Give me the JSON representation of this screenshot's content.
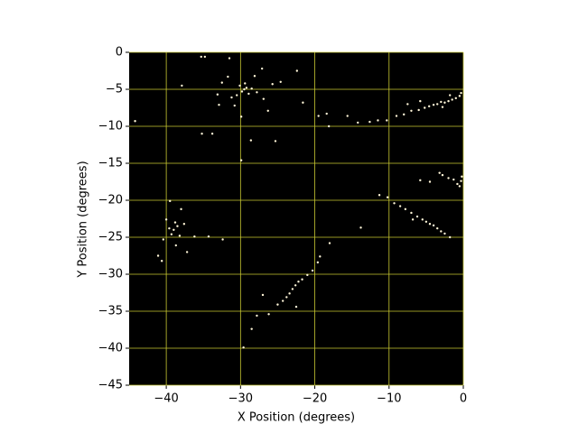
{
  "chart_data": {
    "type": "scatter",
    "x_label": "X Position (degrees)",
    "y_label": "Y Position (degrees)",
    "background": "#000000",
    "grid": true,
    "grid_color": "#c8c832",
    "xlim": [
      -45,
      0
    ],
    "ylim": [
      -45,
      0
    ],
    "xticks": [
      {
        "value": -40,
        "label": "−40"
      },
      {
        "value": -30,
        "label": "−30"
      },
      {
        "value": -20,
        "label": "−20"
      },
      {
        "value": -10,
        "label": "−10"
      },
      0
    ],
    "yticks": [
      0,
      {
        "value": -5,
        "label": "−5"
      },
      {
        "value": -10,
        "label": "−10"
      },
      {
        "value": -15,
        "label": "−15"
      },
      {
        "value": -20,
        "label": "−20"
      },
      {
        "value": -25,
        "label": "−25"
      },
      {
        "value": -30,
        "label": "−30"
      },
      {
        "value": -35,
        "label": "−35"
      },
      {
        "value": -40,
        "label": "−40"
      },
      {
        "value": -45,
        "label": "−45"
      }
    ],
    "color": "#fff6d8",
    "x": [
      -29.5,
      -29.2,
      -29.8,
      -30.1,
      -28.9,
      -29.4,
      -30.5,
      -28.5,
      -31.2,
      -27.8,
      -32.5,
      -26.9,
      -33.1,
      -28.1,
      -30.8,
      -34.8,
      -35.3,
      -27.1,
      -25.7,
      -31.7,
      -29.9,
      -26.3,
      -32.9,
      -24.6,
      -28.6,
      -33.8,
      -29.9,
      -25.3,
      -37.9,
      -31.5,
      -0.5,
      -1.0,
      -1.5,
      -2.0,
      -2.5,
      -3.0,
      -3.5,
      -4.0,
      -4.6,
      -5.2,
      -6.0,
      -7.0,
      -8.0,
      -9.0,
      -10.3,
      -11.5,
      -12.6,
      -14.2,
      -15.6,
      -0.3,
      -1.8,
      -2.8,
      -5.8,
      -7.5,
      -18.1,
      -19.5,
      -0.3,
      -0.8,
      -1.3,
      -0.5,
      -2.0,
      -2.8,
      -3.2,
      -4.5,
      -5.8,
      -0.2,
      -8.5,
      -7.8,
      -7.0,
      -6.2,
      -5.5,
      -5.0,
      -4.5,
      -4.0,
      -3.5,
      -3.0,
      -2.5,
      -1.8,
      -6.8,
      -10.2,
      -9.3,
      -39.0,
      -38.5,
      -39.3,
      -38.8,
      -39.6,
      -38.2,
      -40.0,
      -37.6,
      -40.4,
      -38.7,
      -41.1,
      -36.2,
      -38.0,
      -40.6,
      -37.2,
      -39.5,
      -23.0,
      -22.6,
      -23.4,
      -22.2,
      -23.8,
      -21.7,
      -24.3,
      -25.0,
      -21.0,
      -20.3,
      -19.6,
      -19.3,
      -26.2,
      -27.8,
      -28.5,
      -29.6,
      -27.0,
      -18.0,
      -22.5,
      -44.2,
      -35.2,
      -34.3,
      -32.4,
      -22.4,
      -21.6,
      -18.4,
      -11.3,
      -13.8
    ],
    "y": [
      -5,
      -4.8,
      -5.3,
      -4.5,
      -5.6,
      -4.2,
      -5.8,
      -4.9,
      -6.1,
      -5.4,
      -4.1,
      -6.3,
      -5.7,
      -3.2,
      -7.2,
      -0.6,
      -0.6,
      -2.2,
      -4.3,
      -3.3,
      -8.7,
      -7.9,
      -7.1,
      -4.0,
      -11.9,
      -11.0,
      -14.6,
      -12.0,
      -4.5,
      -0.8,
      -5.9,
      -6.2,
      -6.4,
      -6.6,
      -6.8,
      -6.7,
      -7.0,
      -7.1,
      -7.3,
      -7.5,
      -7.8,
      -7.9,
      -8.4,
      -8.6,
      -9.2,
      -9.2,
      -9.4,
      -9.5,
      -8.6,
      -5.5,
      -5.8,
      -7.4,
      -6.6,
      -7.0,
      -10.0,
      -8.6,
      -17.4,
      -17.8,
      -17.2,
      -18.1,
      -17.0,
      -16.6,
      -16.3,
      -17.5,
      -17.3,
      -16.8,
      -20.8,
      -21.2,
      -21.7,
      -22.2,
      -22.6,
      -22.9,
      -23.2,
      -23.4,
      -23.8,
      -24.2,
      -24.5,
      -25.0,
      -22.6,
      -19.6,
      -20.4,
      -24.0,
      -23.5,
      -24.6,
      -23.0,
      -23.8,
      -24.8,
      -22.6,
      -23.2,
      -25.3,
      -26.1,
      -27.5,
      -24.9,
      -21.2,
      -28.2,
      -27.0,
      -20.1,
      -32.0,
      -31.5,
      -32.6,
      -31.0,
      -33.1,
      -30.7,
      -33.6,
      -34.1,
      -30.1,
      -29.5,
      -28.4,
      -27.6,
      -35.4,
      -35.6,
      -37.4,
      -39.9,
      -32.8,
      -25.8,
      -34.4,
      -9.3,
      -11.0,
      -24.9,
      -25.3,
      -2.5,
      -6.8,
      -8.3,
      -19.3,
      -23.7
    ]
  }
}
